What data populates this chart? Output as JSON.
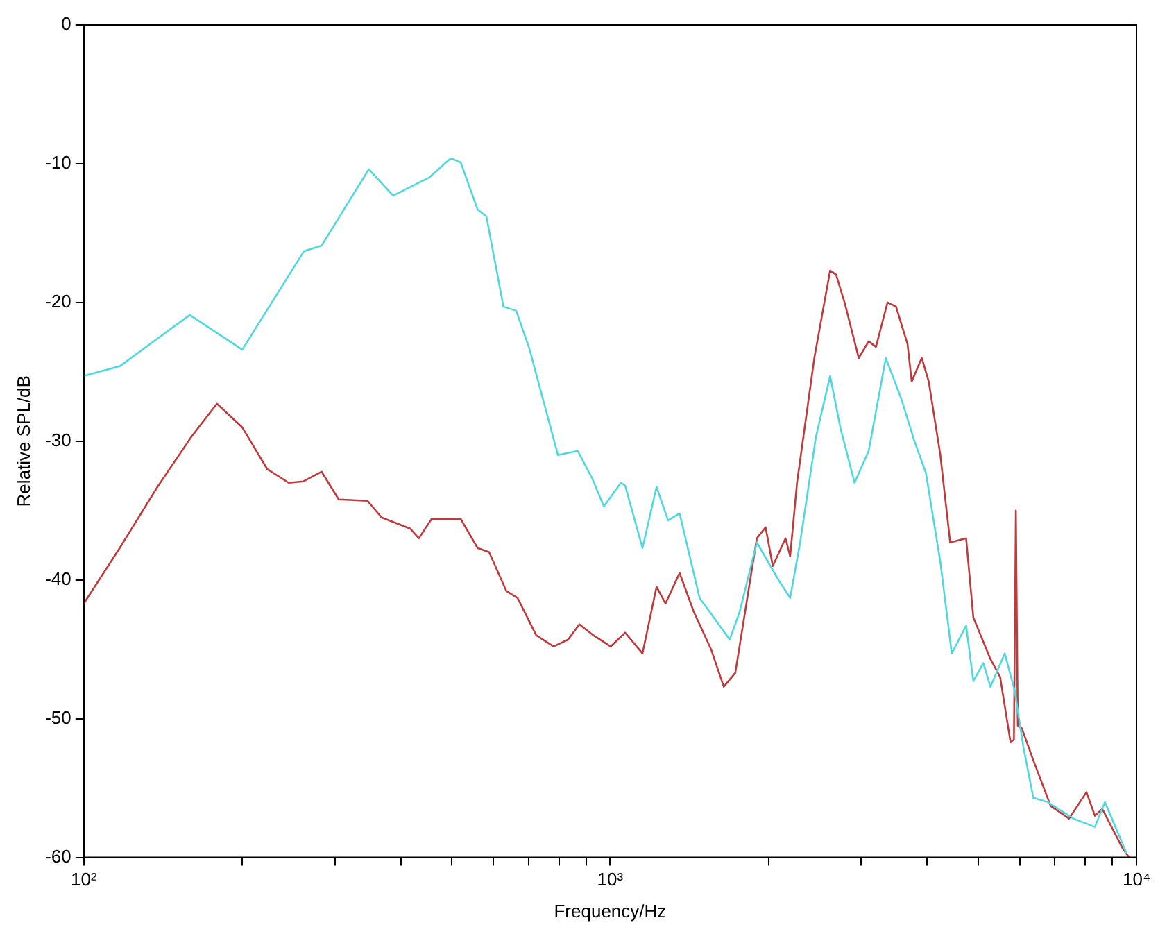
{
  "chart_data": {
    "type": "line",
    "xlabel": "Frequency/Hz",
    "ylabel": "Relative SPL/dB",
    "log": "x",
    "grid": false,
    "marker": "none",
    "line_style": "solid",
    "xlim": [
      100,
      10000
    ],
    "ylim": [
      -60,
      0
    ],
    "xticks": [
      {
        "value": 100,
        "label": "10²"
      },
      {
        "value": 200,
        "label": null
      },
      {
        "value": 300,
        "label": null
      },
      {
        "value": 400,
        "label": null
      },
      {
        "value": 500,
        "label": null
      },
      {
        "value": 600,
        "label": null
      },
      {
        "value": 700,
        "label": null
      },
      {
        "value": 800,
        "label": null
      },
      {
        "value": 900,
        "label": null
      },
      {
        "value": 1000,
        "label": "10³"
      },
      {
        "value": 2000,
        "label": null
      },
      {
        "value": 3000,
        "label": null
      },
      {
        "value": 4000,
        "label": null
      },
      {
        "value": 5000,
        "label": null
      },
      {
        "value": 6000,
        "label": null
      },
      {
        "value": 7000,
        "label": null
      },
      {
        "value": 8000,
        "label": null
      },
      {
        "value": 9000,
        "label": null
      },
      {
        "value": 10000,
        "label": "10⁴"
      }
    ],
    "yticks": [
      -60,
      -50,
      -40,
      -30,
      -20,
      -10,
      0
    ],
    "series": [
      {
        "color": "#4fd8e0",
        "x": [
          100,
          117,
          159,
          200,
          262,
          283,
          348,
          387,
          453,
          498,
          520,
          560,
          582,
          627,
          663,
          702,
          796,
          868,
          925,
          973,
          1048,
          1068,
          1152,
          1225,
          1288,
          1355,
          1479,
          1687,
          1762,
          1900,
          2089,
          2198,
          2296,
          2460,
          2618,
          2737,
          2913,
          3099,
          3340,
          3578,
          3786,
          3981,
          4240,
          4457,
          4746,
          4898,
          5117,
          5278,
          5620,
          5871,
          6095,
          6368,
          6776,
          7586,
          8337,
          8710,
          9572
        ],
        "values": [
          -25.3,
          -24.6,
          -20.9,
          -23.4,
          -16.3,
          -15.9,
          -10.4,
          -12.3,
          -11.0,
          -9.6,
          -9.9,
          -13.3,
          -13.8,
          -20.3,
          -20.6,
          -23.3,
          -31.0,
          -30.7,
          -32.7,
          -34.7,
          -33.0,
          -33.2,
          -37.7,
          -33.3,
          -35.7,
          -35.2,
          -41.3,
          -44.3,
          -42.3,
          -37.3,
          -40.0,
          -41.3,
          -37.3,
          -29.7,
          -25.3,
          -29.0,
          -33.0,
          -30.7,
          -24.0,
          -27.0,
          -30.0,
          -32.3,
          -38.7,
          -45.3,
          -43.3,
          -47.3,
          -46.0,
          -47.7,
          -45.3,
          -48.0,
          -52.0,
          -55.7,
          -56.0,
          -57.2,
          -57.8,
          -56.0,
          -59.7
        ]
      },
      {
        "color": "#c0393b",
        "x": [
          100,
          117,
          138,
          160,
          179,
          200,
          223,
          245,
          261,
          283,
          305,
          346,
          368,
          417,
          433,
          458,
          520,
          560,
          589,
          635,
          667,
          724,
          781,
          832,
          874,
          930,
          1002,
          1068,
          1152,
          1225,
          1274,
          1355,
          1442,
          1555,
          1644,
          1729,
          1900,
          1974,
          2037,
          2154,
          2198,
          2265,
          2443,
          2618,
          2687,
          2789,
          2967,
          3099,
          3199,
          3365,
          3493,
          3673,
          3741,
          3909,
          4030,
          4240,
          4426,
          4746,
          4898,
          5278,
          5508,
          5764,
          5850,
          5900,
          5950,
          6056,
          6368,
          6871,
          7447,
          8035,
          8337,
          8610,
          9397,
          9680
        ],
        "values": [
          -41.7,
          -37.7,
          -33.3,
          -29.7,
          -27.3,
          -29.0,
          -32.0,
          -33.0,
          -32.9,
          -32.2,
          -34.2,
          -34.3,
          -35.5,
          -36.3,
          -37.0,
          -35.6,
          -35.6,
          -37.7,
          -38.0,
          -40.8,
          -41.3,
          -44.0,
          -44.8,
          -44.3,
          -43.2,
          -44.0,
          -44.8,
          -43.8,
          -45.3,
          -40.5,
          -41.7,
          -39.5,
          -42.3,
          -45.0,
          -47.7,
          -46.7,
          -37.0,
          -36.2,
          -39.0,
          -37.0,
          -38.3,
          -33.0,
          -24.0,
          -17.7,
          -18.0,
          -20.0,
          -24.0,
          -22.8,
          -23.2,
          -20.0,
          -20.3,
          -23.0,
          -25.7,
          -24.0,
          -25.7,
          -31.0,
          -37.3,
          -37.0,
          -42.7,
          -45.7,
          -47.0,
          -51.7,
          -51.5,
          -35.0,
          -50.5,
          -50.7,
          -53.0,
          -56.3,
          -57.2,
          -55.3,
          -57.0,
          -56.5,
          -59.3,
          -60.0
        ]
      }
    ]
  }
}
